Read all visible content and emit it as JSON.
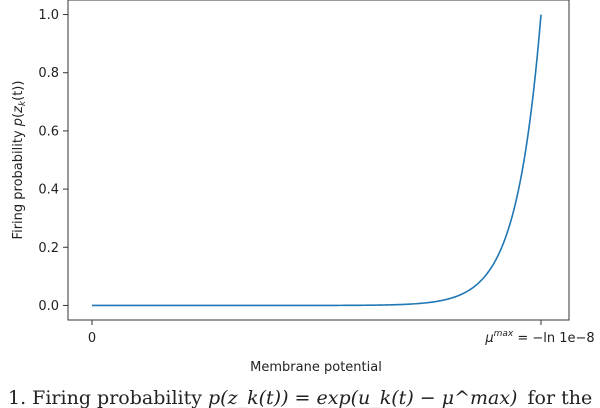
{
  "chart_data": {
    "type": "line",
    "title": "",
    "xlabel": "Membrane potential",
    "ylabel": "Firing probability p(z_k(t))",
    "ylabel_parts": {
      "text": "Firing probability ",
      "func": "p",
      "open": "(",
      "var": "z",
      "sub": "k",
      "arg": "(t))"
    },
    "xlim": [
      0,
      1
    ],
    "ylim": [
      -0.05,
      1.05
    ],
    "x_ticks": [
      {
        "value": 0,
        "label": "0"
      },
      {
        "value": 1,
        "label": "μ^max = −ln 1e−8"
      }
    ],
    "x_tick_max_parts": {
      "mu": "μ",
      "sup": "max",
      "rest": " = −ln 1e−8"
    },
    "y_ticks": [
      {
        "value": 0.0,
        "label": "0.0"
      },
      {
        "value": 0.2,
        "label": "0.2"
      },
      {
        "value": 0.4,
        "label": "0.4"
      },
      {
        "value": 0.6,
        "label": "0.6"
      },
      {
        "value": 0.8,
        "label": "0.8"
      },
      {
        "value": 1.0,
        "label": "1.0"
      }
    ],
    "grid": false,
    "legend": "none",
    "series": [
      {
        "color": "#1f77b4",
        "curve": "p = exp(ln(1e-8) · (1 − x))",
        "x": [
          0,
          0.1,
          0.2,
          0.3,
          0.4,
          0.5,
          0.6,
          0.7,
          0.75,
          0.8,
          0.85,
          0.9,
          0.92,
          0.94,
          0.96,
          0.98,
          1.0
        ],
        "y": [
          0.0,
          0.0,
          0.0,
          0.0,
          0.0,
          0.0,
          0.0,
          0.004,
          0.01,
          0.025,
          0.063,
          0.158,
          0.229,
          0.331,
          0.479,
          0.692,
          1.0
        ]
      }
    ]
  },
  "caption": {
    "text": "1.   Firing probability ",
    "math": "p(z_k(t)) = exp(u_k(t) − μ^max)",
    "tail": "for the"
  }
}
